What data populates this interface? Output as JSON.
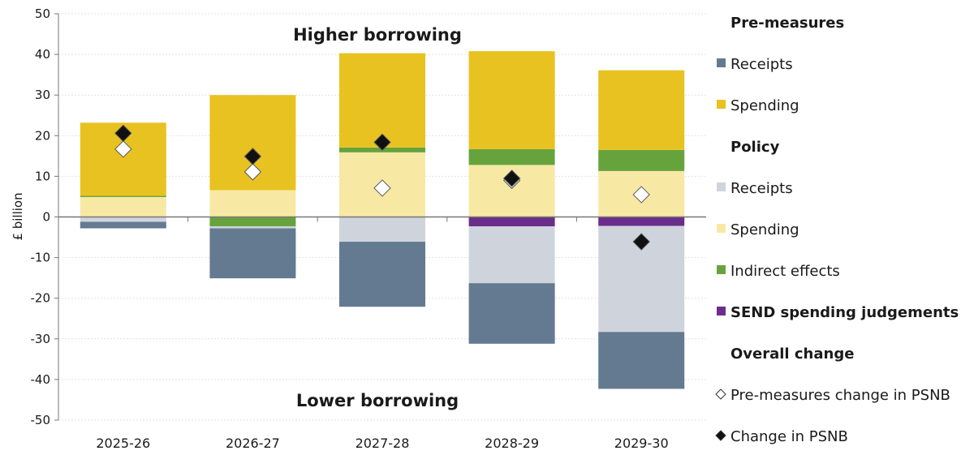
{
  "chart_data": {
    "type": "bar",
    "stacked": true,
    "ylabel": "£ billion",
    "ylim": [
      -50,
      50
    ],
    "yticks": [
      50,
      40,
      30,
      20,
      10,
      0,
      -10,
      -20,
      -30,
      -40,
      -50
    ],
    "grid": true,
    "legend_position": "right",
    "annotations": {
      "top": "Higher borrowing",
      "bottom": "Lower borrowing"
    },
    "categories": [
      "2025-26",
      "2026-27",
      "2027-28",
      "2028-29",
      "2029-30"
    ],
    "legend_groups": [
      {
        "title": "Pre-measures",
        "items": [
          "pre_receipts",
          "pre_spending"
        ]
      },
      {
        "title": "Policy",
        "items": [
          "pol_receipts",
          "pol_spending",
          "indirect",
          "send"
        ]
      },
      {
        "title": "Overall change",
        "items": [
          "pre_psnb",
          "psnb"
        ]
      }
    ],
    "series": [
      {
        "id": "pol_spending",
        "name": "Spending",
        "group": "Policy",
        "color": "#f7e9a4",
        "values": [
          4.9,
          6.6,
          15.9,
          12.8,
          11.3
        ]
      },
      {
        "id": "indirect",
        "name": "Indirect effects",
        "group": "Policy",
        "color": "#67a33d",
        "values": [
          0.3,
          -2.3,
          1.2,
          3.9,
          5.2
        ]
      },
      {
        "id": "pre_spending",
        "name": "Spending",
        "group": "Pre-measures",
        "color": "#e8c220",
        "values": [
          18.0,
          23.4,
          23.2,
          24.1,
          19.6
        ]
      },
      {
        "id": "send",
        "name": "SEND spending judgements",
        "group": "Policy",
        "color": "#6a2d8c",
        "values": [
          0,
          0,
          0,
          -2.3,
          -2.2
        ]
      },
      {
        "id": "pol_receipts",
        "name": "Receipts",
        "group": "Policy",
        "color": "#cfd4dc",
        "values": [
          -1.2,
          -0.5,
          -6.1,
          -14.0,
          -26.1
        ]
      },
      {
        "id": "pre_receipts",
        "name": "Receipts",
        "group": "Pre-measures",
        "color": "#647a91",
        "values": [
          -1.6,
          -12.3,
          -16.0,
          -14.9,
          -14.0
        ]
      }
    ],
    "markers": [
      {
        "id": "pre_psnb",
        "name": "Pre-measures change in PSNB",
        "fill": "#ffffff",
        "values": [
          16.7,
          11.1,
          7.1,
          9.0,
          5.5
        ]
      },
      {
        "id": "psnb",
        "name": "Change in PSNB",
        "fill": "#111111",
        "values": [
          20.6,
          14.9,
          18.4,
          9.5,
          -6.1
        ]
      }
    ]
  }
}
